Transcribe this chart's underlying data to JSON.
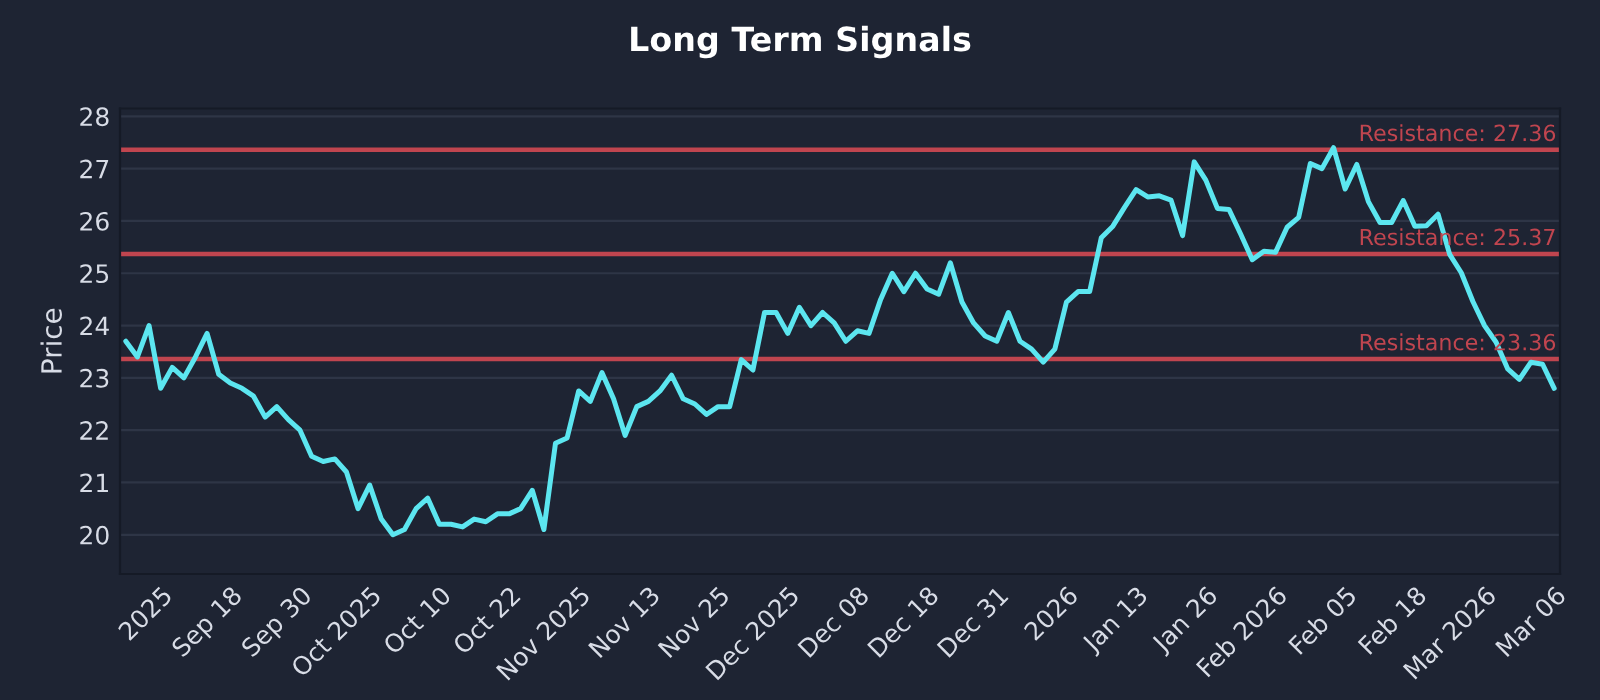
{
  "chart_data": {
    "type": "line",
    "title": "Long Term Signals",
    "ylabel": "Price",
    "categories": [
      null,
      null,
      null,
      "2025",
      null,
      null,
      null,
      null,
      null,
      "Sep 18",
      null,
      null,
      null,
      null,
      null,
      "Sep 30",
      null,
      null,
      null,
      null,
      null,
      "Oct 2025",
      null,
      null,
      null,
      null,
      null,
      "Oct 10",
      null,
      null,
      null,
      null,
      null,
      "Oct 22",
      null,
      null,
      null,
      null,
      null,
      "Nov 2025",
      null,
      null,
      null,
      null,
      null,
      "Nov 13",
      null,
      null,
      null,
      null,
      null,
      "Nov 25",
      null,
      null,
      null,
      null,
      null,
      "Dec 2025",
      null,
      null,
      null,
      null,
      null,
      "Dec 08",
      null,
      null,
      null,
      null,
      null,
      "Dec 18",
      null,
      null,
      null,
      null,
      null,
      "Dec 31",
      null,
      null,
      null,
      null,
      null,
      "2026",
      null,
      null,
      null,
      null,
      null,
      "Jan 13",
      null,
      null,
      null,
      null,
      null,
      "Jan 26",
      null,
      null,
      null,
      null,
      null,
      "Feb 2026",
      null,
      null,
      null,
      null,
      null,
      "Feb 05",
      null,
      null,
      null,
      null,
      null,
      "Feb 18",
      null,
      null,
      null,
      null,
      null,
      "Mar 2026",
      null,
      null,
      null,
      null,
      null,
      "Mar 06"
    ],
    "series": [
      {
        "color": "#5ce6f0",
        "values": [
          23.7,
          23.4,
          24.0,
          22.8,
          23.2,
          23.0,
          23.4,
          23.85,
          23.07,
          22.9,
          22.8,
          22.65,
          22.25,
          22.45,
          22.2,
          22.0,
          21.5,
          21.4,
          21.45,
          21.2,
          20.5,
          20.95,
          20.3,
          20.0,
          20.1,
          20.5,
          20.7,
          20.2,
          20.2,
          20.15,
          20.3,
          20.25,
          20.4,
          20.4,
          20.5,
          20.85,
          20.1,
          21.75,
          21.85,
          22.75,
          22.55,
          23.1,
          22.6,
          21.9,
          22.45,
          22.55,
          22.75,
          23.05,
          22.6,
          22.5,
          22.3,
          22.45,
          22.45,
          23.35,
          23.15,
          24.25,
          24.25,
          23.85,
          24.35,
          24.0,
          24.25,
          24.05,
          23.7,
          23.9,
          23.85,
          24.5,
          25.0,
          24.65,
          25.0,
          24.7,
          24.6,
          25.2,
          24.45,
          24.05,
          23.8,
          23.7,
          24.25,
          23.7,
          23.55,
          23.3,
          23.55,
          24.45,
          24.65,
          24.65,
          25.68,
          25.9,
          26.26,
          26.6,
          26.46,
          26.48,
          26.4,
          25.72,
          27.13,
          26.78,
          26.24,
          26.22,
          25.75,
          25.26,
          25.42,
          25.4,
          25.88,
          26.07,
          27.1,
          27.0,
          27.4,
          26.61,
          27.08,
          26.37,
          25.97,
          25.97,
          26.39,
          25.9,
          25.91,
          26.13,
          25.36,
          25.01,
          24.46,
          24.0,
          23.68,
          23.17,
          22.97,
          23.3,
          23.26,
          22.8
        ]
      }
    ],
    "ylim": [
      19.25,
      28.15
    ],
    "yticks": [
      20,
      21,
      22,
      23,
      24,
      25,
      26,
      27,
      28
    ],
    "grid": "y",
    "ref_lines": [
      {
        "axis": "y",
        "value": 27.36,
        "label": "Resistance: 27.36",
        "color": "#c0454f"
      },
      {
        "axis": "y",
        "value": 25.37,
        "label": "Resistance: 25.37",
        "color": "#c0454f"
      },
      {
        "axis": "y",
        "value": 23.36,
        "label": "Resistance: 23.36",
        "color": "#c0454f"
      }
    ]
  }
}
